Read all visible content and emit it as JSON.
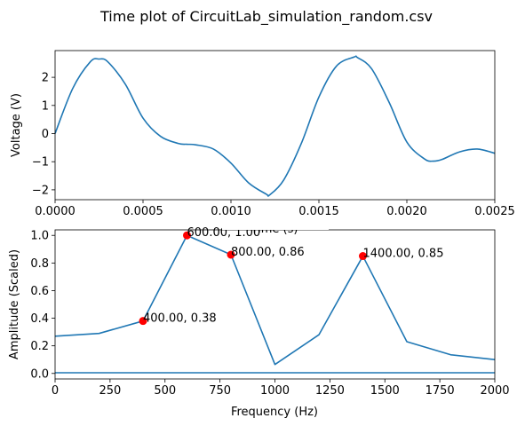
{
  "title": "Time plot of CircuitLab_simulation_random.csv",
  "chart_data": [
    {
      "type": "line",
      "xlabel": "Time (s)",
      "ylabel": "Voltage (V)",
      "xlim": [
        0,
        0.0025
      ],
      "ylim": [
        -2.35,
        2.95
      ],
      "xticks": [
        {
          "v": 0,
          "label": "0.0000"
        },
        {
          "v": 0.0005,
          "label": "0.0005"
        },
        {
          "v": 0.001,
          "label": "0.0010"
        },
        {
          "v": 0.0015,
          "label": "0.0015"
        },
        {
          "v": 0.002,
          "label": "0.0020"
        },
        {
          "v": 0.0025,
          "label": "0.0025"
        }
      ],
      "yticks": [
        {
          "v": 2,
          "label": "2"
        },
        {
          "v": 1,
          "label": "1"
        },
        {
          "v": 0,
          "label": "0"
        },
        {
          "v": -1,
          "label": "−1"
        },
        {
          "v": -2,
          "label": "−2"
        }
      ],
      "grid": false,
      "color": "#1f77b4",
      "series": [
        {
          "x": [
            0,
            0.0001,
            0.0002,
            0.00025,
            0.0003,
            0.0004,
            0.0005,
            0.0006,
            0.0007,
            0.00075,
            0.0008,
            0.0009,
            0.001,
            0.0011,
            0.0012,
            0.00122,
            0.0013,
            0.0014,
            0.0015,
            0.0016,
            0.0017,
            0.00172,
            0.0018,
            0.0019,
            0.002,
            0.0021,
            0.00215,
            0.0022,
            0.0023,
            0.0024,
            0.0025
          ],
          "y": [
            0.0,
            1.6,
            2.55,
            2.65,
            2.55,
            1.75,
            0.55,
            -0.1,
            -0.35,
            -0.38,
            -0.4,
            -0.55,
            -1.05,
            -1.75,
            -2.15,
            -2.18,
            -1.65,
            -0.35,
            1.3,
            2.4,
            2.72,
            2.7,
            2.3,
            1.1,
            -0.3,
            -0.9,
            -0.98,
            -0.92,
            -0.65,
            -0.55,
            -0.7
          ]
        }
      ]
    },
    {
      "type": "line",
      "xlabel": "Frequency (Hz)",
      "ylabel": "Amplitude (Scaled)",
      "xlim": [
        0,
        2000
      ],
      "ylim": [
        -0.04,
        1.04
      ],
      "xticks": [
        {
          "v": 0,
          "label": "0"
        },
        {
          "v": 250,
          "label": "250"
        },
        {
          "v": 500,
          "label": "500"
        },
        {
          "v": 750,
          "label": "750"
        },
        {
          "v": 1000,
          "label": "1000"
        },
        {
          "v": 1250,
          "label": "1250"
        },
        {
          "v": 1500,
          "label": "1500"
        },
        {
          "v": 1750,
          "label": "1750"
        },
        {
          "v": 2000,
          "label": "2000"
        }
      ],
      "yticks": [
        {
          "v": 1.0,
          "label": "1.0"
        },
        {
          "v": 0.8,
          "label": "0.8"
        },
        {
          "v": 0.6,
          "label": "0.6"
        },
        {
          "v": 0.4,
          "label": "0.4"
        },
        {
          "v": 0.2,
          "label": "0.2"
        },
        {
          "v": 0.0,
          "label": "0.0"
        }
      ],
      "grid": false,
      "color": "#1f77b4",
      "series": [
        {
          "x": [
            0,
            200,
            400,
            600,
            800,
            1000,
            1200,
            1400,
            1600,
            1800,
            2000
          ],
          "y": [
            0.27,
            0.29,
            0.38,
            1.0,
            0.86,
            0.065,
            0.28,
            0.85,
            0.23,
            0.135,
            0.1
          ]
        },
        {
          "x": [
            0,
            2000
          ],
          "y": [
            0.005,
            0.005
          ]
        }
      ],
      "peaks": [
        {
          "x": 400,
          "y": 0.38,
          "label": "400.00, 0.38"
        },
        {
          "x": 600,
          "y": 1.0,
          "label": "600.00, 1.00"
        },
        {
          "x": 800,
          "y": 0.86,
          "label": "800.00, 0.86"
        },
        {
          "x": 1400,
          "y": 0.85,
          "label": "1400.00, 0.85"
        }
      ],
      "peak_color": "#ff0000"
    }
  ]
}
